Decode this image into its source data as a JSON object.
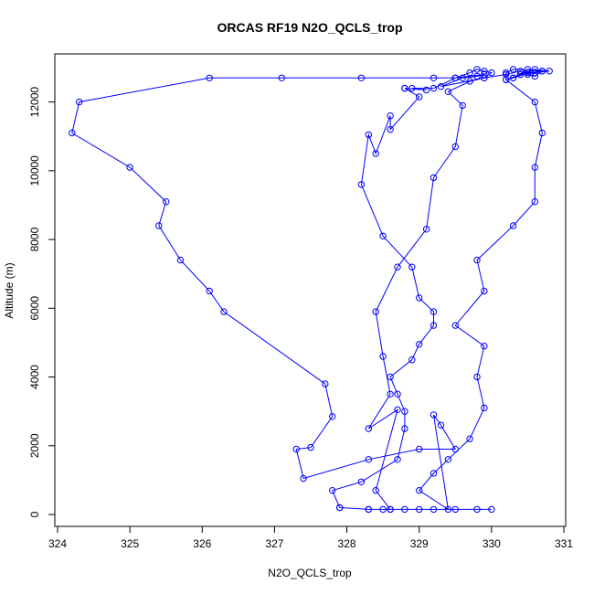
{
  "chart_data": {
    "type": "line",
    "title": "ORCAS RF19 N2O_QCLS_trop",
    "xlabel": "N2O_QCLS_trop",
    "ylabel": "Altitude (m)",
    "xlim": [
      324,
      331
    ],
    "ylim": [
      0,
      13000
    ],
    "x_ticks": [
      "324",
      "325",
      "326",
      "327",
      "328",
      "329",
      "330",
      "331"
    ],
    "y_ticks": [
      "0",
      "2000",
      "4000",
      "6000",
      "8000",
      "10000",
      "12000"
    ],
    "grid": false,
    "legend": "none",
    "series_color": "#0000FF",
    "marker": "open-circle",
    "series": [
      {
        "x": [
          328.3,
          328.6,
          328.4,
          328.7,
          328.3,
          328.6,
          328.5,
          328.4,
          328.7,
          329.1,
          329.2,
          329.5,
          329.6,
          329.4,
          329.7,
          329.9,
          330.2,
          330.4,
          330.5,
          330.6,
          330.7,
          330.6,
          330.5,
          330.3,
          330.4,
          330.6,
          330.8,
          330.5,
          330.3,
          330.2,
          330.4,
          330.7,
          330.3,
          330.2,
          330.2,
          330.6,
          330.7,
          330.6,
          330.6,
          330.3,
          329.8,
          329.9,
          329.5,
          329.9,
          329.8,
          329.9,
          329.7,
          329.4,
          329.2,
          329.0,
          329.4,
          329.2,
          329.3,
          329.5,
          329.0,
          328.3,
          327.4,
          327.3,
          327.5,
          327.8,
          327.7,
          326.3,
          326.1,
          325.7,
          325.4,
          325.5,
          325.0,
          324.2,
          324.3,
          326.1,
          327.1,
          328.2,
          329.2,
          329.5,
          329.9,
          329.8,
          329.6,
          329.3,
          329.9,
          330.0,
          329.9,
          329.8,
          329.7,
          329.5,
          329.2,
          328.9,
          329.1,
          328.8,
          328.8,
          329.0,
          328.6,
          328.6,
          328.4,
          328.3,
          328.2,
          328.5,
          328.9,
          329.0,
          329.2,
          329.2,
          329.0,
          328.9,
          328.6,
          328.7,
          328.8,
          328.8,
          328.7,
          328.2,
          327.8,
          327.9,
          327.9,
          328.3,
          328.5,
          328.6,
          328.8,
          329.0,
          329.2,
          329.5,
          329.8,
          330.0
        ],
        "y": [
          150,
          150,
          700,
          3050,
          2500,
          3500,
          4600,
          5900,
          7200,
          8300,
          9800,
          10700,
          11900,
          12300,
          12600,
          12700,
          12800,
          12900,
          12800,
          12750,
          12900,
          12950,
          12850,
          12700,
          12800,
          12850,
          12900,
          12950,
          12700,
          12650,
          12800,
          12900,
          12950,
          12850,
          12650,
          12000,
          11100,
          10100,
          9100,
          8400,
          7400,
          6500,
          5500,
          4900,
          4000,
          3100,
          2200,
          1600,
          1200,
          700,
          150,
          2900,
          2600,
          1900,
          1900,
          1600,
          1050,
          1900,
          1950,
          2850,
          3800,
          5900,
          6500,
          7400,
          8400,
          9100,
          10100,
          11100,
          12000,
          12700,
          12700,
          12700,
          12700,
          12700,
          12800,
          12750,
          12700,
          12450,
          12700,
          12850,
          12900,
          12950,
          12850,
          12700,
          12400,
          12400,
          12350,
          12400,
          12400,
          12150,
          11200,
          11600,
          10500,
          11050,
          9600,
          8100,
          7200,
          6300,
          5900,
          5500,
          4950,
          4500,
          4000,
          3500,
          3000,
          2500,
          1600,
          950,
          700,
          200,
          200,
          150,
          150,
          150,
          150,
          150,
          150,
          150,
          150,
          150
        ]
      }
    ]
  }
}
